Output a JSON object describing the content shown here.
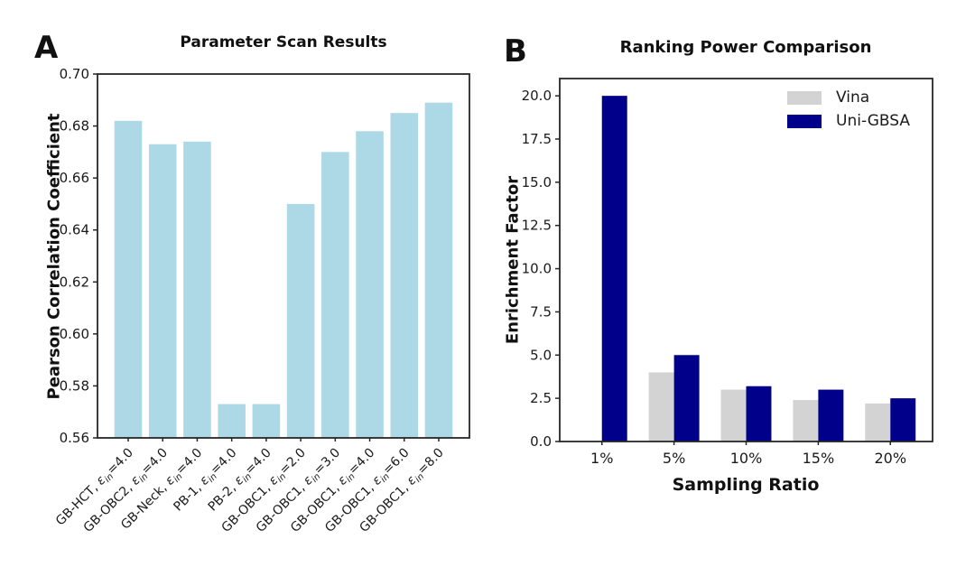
{
  "figure": {
    "panel_a_letter": "A",
    "panel_b_letter": "B"
  },
  "chart_data": [
    {
      "id": "panelA",
      "type": "bar",
      "title": "Parameter Scan Results",
      "ylabel": "Pearson Correlation Coefficient",
      "xlabel": "",
      "categories": [
        "GB-HCT, ε_in=4.0",
        "GB-OBC2, ε_in=4.0",
        "GB-Neck, ε_in=4.0",
        "PB-1, ε_in=4.0",
        "PB-2, ε_in=4.0",
        "GB-OBC1, ε_in=2.0",
        "GB-OBC1, ε_in=3.0",
        "GB-OBC1, ε_in=4.0",
        "GB-OBC1, ε_in=6.0",
        "GB-OBC1, ε_in=8.0"
      ],
      "values": [
        0.682,
        0.673,
        0.674,
        0.573,
        0.573,
        0.65,
        0.67,
        0.678,
        0.685,
        0.689
      ],
      "bar_color": "#ADD8E6",
      "ylim": [
        0.56,
        0.7
      ],
      "yticks": [
        0.56,
        0.58,
        0.6,
        0.62,
        0.64,
        0.66,
        0.68,
        0.7
      ],
      "ytick_labels": [
        "0.56",
        "0.58",
        "0.60",
        "0.62",
        "0.64",
        "0.66",
        "0.68",
        "0.70"
      ],
      "xtick_rotation": 45,
      "grid": false,
      "legend": null
    },
    {
      "id": "panelB",
      "type": "bar",
      "title": "Ranking Power Comparison",
      "ylabel": "Enrichment Factor",
      "xlabel": "Sampling Ratio",
      "categories": [
        "1%",
        "5%",
        "10%",
        "15%",
        "20%"
      ],
      "series": [
        {
          "name": "Vina",
          "color": "#D3D3D3",
          "values": [
            0.0,
            4.0,
            3.0,
            2.4,
            2.2
          ]
        },
        {
          "name": "Uni-GBSA",
          "color": "#00008B",
          "values": [
            20.0,
            5.0,
            3.2,
            3.0,
            2.5
          ]
        }
      ],
      "ylim": [
        0,
        21
      ],
      "yticks": [
        0,
        2.5,
        5,
        7.5,
        10,
        12.5,
        15,
        17.5,
        20
      ],
      "ytick_labels": [
        "0.0",
        "2.5",
        "5.0",
        "7.5",
        "10.0",
        "12.5",
        "15.0",
        "17.5",
        "20.0"
      ],
      "grid": false,
      "legend_position": "upper right"
    }
  ]
}
